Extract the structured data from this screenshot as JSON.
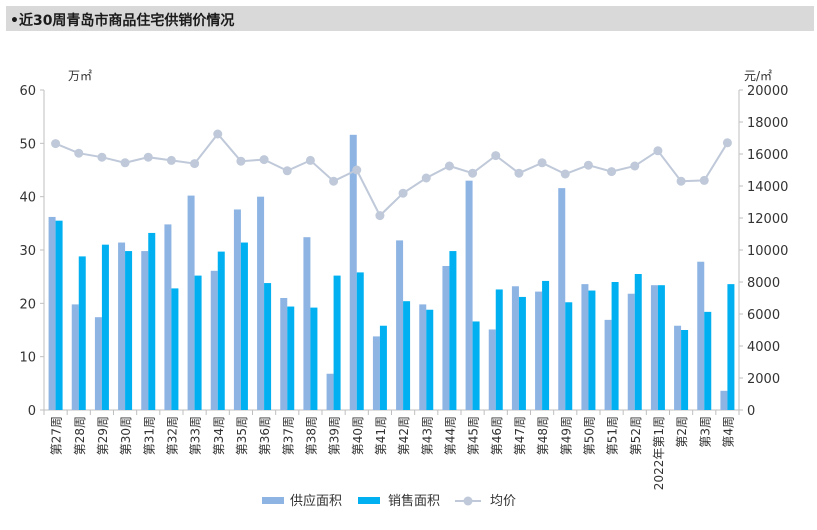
{
  "title": "•近30周青岛市商品住宅供销价情况",
  "chart_data": {
    "type": "bar+line",
    "title": "•近30周青岛市商品住宅供销价情况",
    "y_left_label": "万㎡",
    "y_right_label": "元/㎡",
    "y_left_lim": [
      0,
      60
    ],
    "y_right_lim": [
      0,
      20000
    ],
    "y_left_ticks": [
      "0",
      "10",
      "20",
      "30",
      "40",
      "50",
      "60"
    ],
    "y_right_ticks": [
      "0",
      "2000",
      "4000",
      "6000",
      "8000",
      "10000",
      "12000",
      "14000",
      "16000",
      "18000",
      "20000"
    ],
    "categories": [
      "第27周",
      "第28周",
      "第29周",
      "第30周",
      "第31周",
      "第32周",
      "第33周",
      "第34周",
      "第35周",
      "第36周",
      "第37周",
      "第38周",
      "第39周",
      "第40周",
      "第41周",
      "第42周",
      "第43周",
      "第44周",
      "第45周",
      "第46周",
      "第47周",
      "第48周",
      "第49周",
      "第50周",
      "第51周",
      "第52周",
      "2022年第1周",
      "第2周",
      "第3周",
      "第4周"
    ],
    "series": [
      {
        "name": "供应面积",
        "axis": "left",
        "kind": "bar",
        "color": "#8eb4e3",
        "values": [
          36.2,
          19.8,
          17.4,
          31.4,
          29.8,
          34.8,
          40.2,
          26.1,
          37.6,
          40.0,
          21.0,
          32.4,
          6.8,
          51.6,
          13.8,
          31.8,
          19.8,
          27.0,
          43.0,
          15.1,
          23.2,
          22.2,
          41.6,
          23.6,
          16.9,
          21.8,
          23.4,
          15.8,
          27.8,
          3.6
        ]
      },
      {
        "name": "销售面积",
        "axis": "left",
        "kind": "bar",
        "color": "#00b0f0",
        "values": [
          35.5,
          28.8,
          31.0,
          29.8,
          33.2,
          22.8,
          25.2,
          29.7,
          31.4,
          23.8,
          19.4,
          19.2,
          25.2,
          25.8,
          15.8,
          20.4,
          18.8,
          29.8,
          16.6,
          22.6,
          21.2,
          24.2,
          20.2,
          22.4,
          24.0,
          25.5,
          23.4,
          15.0,
          18.4,
          23.6
        ]
      },
      {
        "name": "均价",
        "axis": "right",
        "kind": "line",
        "color": "#bfc9d9",
        "values": [
          16650,
          16050,
          15800,
          15450,
          15800,
          15600,
          15400,
          17250,
          15550,
          15650,
          14950,
          15600,
          14300,
          15000,
          12150,
          13550,
          14500,
          15250,
          14800,
          15900,
          14800,
          15450,
          14750,
          15300,
          14900,
          15250,
          16200,
          14300,
          14350,
          16700
        ]
      }
    ],
    "legend": [
      "供应面积",
      "销售面积",
      "均价"
    ],
    "grid": false
  }
}
